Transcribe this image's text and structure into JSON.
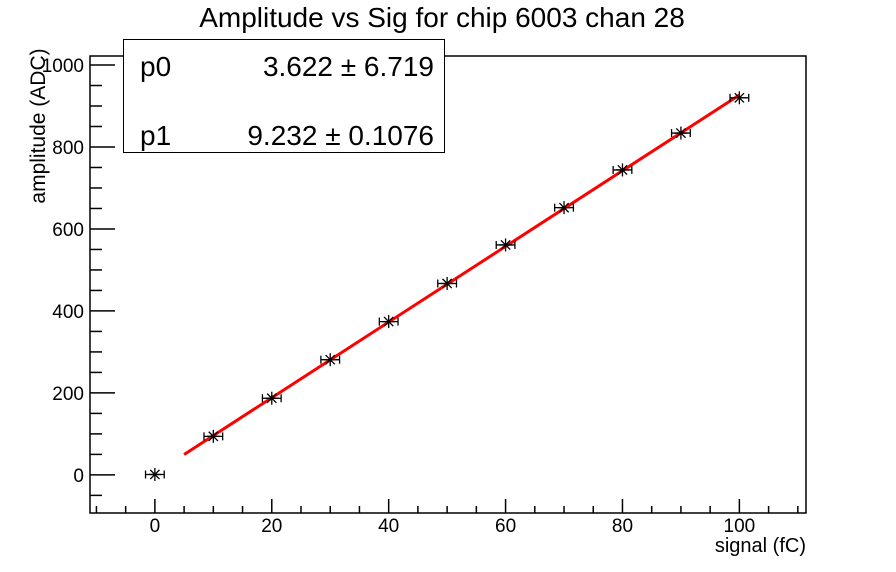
{
  "chart_data": {
    "type": "scatter",
    "title": "Amplitude vs Sig for chip 6003 chan 28",
    "xlabel": "signal (fC)",
    "ylabel": "amplitude (ADC)",
    "x": [
      0,
      10,
      20,
      30,
      40,
      50,
      60,
      70,
      80,
      90,
      100
    ],
    "y": [
      1,
      94,
      187,
      281,
      374,
      467,
      561,
      652,
      744,
      834,
      920
    ],
    "x_error": 1.6,
    "xlim": [
      -11.1,
      111.4
    ],
    "ylim": [
      -93,
      1022
    ],
    "x_major_ticks": [
      0,
      20,
      40,
      60,
      80,
      100
    ],
    "x_minor_step": 5,
    "y_major_ticks": [
      0,
      200,
      400,
      600,
      800,
      1000
    ],
    "y_minor_step": 50,
    "grid": false,
    "legend_position": "none",
    "marker_style": "asterisk-with-x-error-bars",
    "fit_line": {
      "p0": 3.622,
      "p1": 9.232,
      "x_start": 5,
      "x_end": 100
    }
  },
  "stats_box": {
    "rows": [
      {
        "label": "p0",
        "value": "3.622 ± 6.719"
      },
      {
        "label": "p1",
        "value": "9.232 ± 0.1076"
      }
    ]
  },
  "colors": {
    "background": "#ffffff",
    "data_marker": "#000000",
    "fit_line": "#ff0000",
    "axis": "#000000"
  }
}
